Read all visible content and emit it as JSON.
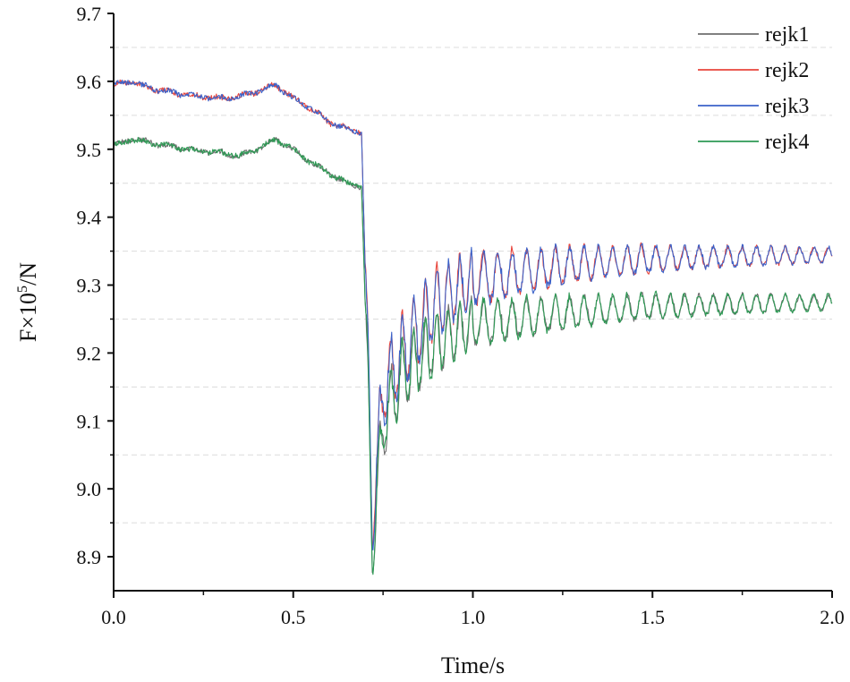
{
  "chart_data": {
    "type": "line",
    "title": "",
    "xlabel": "Time/s",
    "ylabel_parts": {
      "base": "F×10",
      "exponent": "5",
      "suffix": "/N"
    },
    "xlim": [
      0.0,
      2.0
    ],
    "ylim": [
      8.85,
      9.7
    ],
    "x_ticks": [
      "0.0",
      "0.5",
      "1.0",
      "1.5",
      "2.0"
    ],
    "y_ticks": [
      "8.9",
      "9.0",
      "9.1",
      "9.2",
      "9.3",
      "9.4",
      "9.5",
      "9.6",
      "9.7"
    ],
    "grid": "horizontal dashed at 0.05 offsets",
    "legend_position": "top-right",
    "series": [
      {
        "name": "rejk1",
        "color": "#6e6e6e",
        "group": "low",
        "phase": 0.0,
        "amp": 1.0
      },
      {
        "name": "rejk2",
        "color": "#e8453c",
        "group": "high",
        "phase": 0.4,
        "amp": 0.98
      },
      {
        "name": "rejk3",
        "color": "#3b62c9",
        "group": "high",
        "phase": 0.0,
        "amp": 1.0
      },
      {
        "name": "rejk4",
        "color": "#2e9a55",
        "group": "low",
        "phase": 0.5,
        "amp": 1.02
      }
    ],
    "profiles": {
      "high": {
        "pre_drop": [
          [
            0.0,
            9.595
          ],
          [
            0.05,
            9.6
          ],
          [
            0.1,
            9.59
          ],
          [
            0.2,
            9.58
          ],
          [
            0.3,
            9.575
          ],
          [
            0.35,
            9.578
          ],
          [
            0.4,
            9.585
          ],
          [
            0.45,
            9.595
          ],
          [
            0.5,
            9.575
          ],
          [
            0.55,
            9.56
          ],
          [
            0.6,
            9.54
          ],
          [
            0.65,
            9.53
          ],
          [
            0.69,
            9.525
          ]
        ],
        "post_drop": [
          [
            0.7,
            9.33
          ],
          [
            0.72,
            8.96
          ],
          [
            0.75,
            9.15
          ],
          [
            0.8,
            9.2
          ],
          [
            0.9,
            9.28
          ],
          [
            1.0,
            9.31
          ],
          [
            1.25,
            9.33
          ],
          [
            1.5,
            9.34
          ],
          [
            2.0,
            9.345
          ]
        ],
        "osc_amp": [
          [
            0.7,
            0.1
          ],
          [
            0.9,
            0.09
          ],
          [
            1.0,
            0.07
          ],
          [
            1.3,
            0.045
          ],
          [
            1.6,
            0.03
          ],
          [
            2.0,
            0.02
          ]
        ]
      },
      "low": {
        "pre_drop": [
          [
            0.0,
            9.505
          ],
          [
            0.05,
            9.515
          ],
          [
            0.1,
            9.51
          ],
          [
            0.2,
            9.5
          ],
          [
            0.3,
            9.495
          ],
          [
            0.35,
            9.49
          ],
          [
            0.4,
            9.5
          ],
          [
            0.45,
            9.515
          ],
          [
            0.5,
            9.5
          ],
          [
            0.55,
            9.48
          ],
          [
            0.6,
            9.465
          ],
          [
            0.65,
            9.45
          ],
          [
            0.69,
            9.445
          ]
        ],
        "post_drop": [
          [
            0.7,
            9.28
          ],
          [
            0.72,
            8.92
          ],
          [
            0.75,
            9.1
          ],
          [
            0.8,
            9.17
          ],
          [
            0.9,
            9.22
          ],
          [
            1.0,
            9.245
          ],
          [
            1.25,
            9.26
          ],
          [
            1.5,
            9.27
          ],
          [
            2.0,
            9.275
          ]
        ],
        "osc_amp": [
          [
            0.7,
            0.09
          ],
          [
            0.9,
            0.08
          ],
          [
            1.0,
            0.06
          ],
          [
            1.3,
            0.04
          ],
          [
            1.6,
            0.028
          ],
          [
            2.0,
            0.02
          ]
        ]
      }
    }
  }
}
